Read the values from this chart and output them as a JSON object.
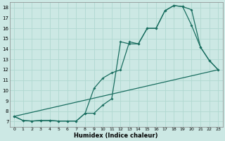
{
  "xlabel": "Humidex (Indice chaleur)",
  "bg_color": "#cce8e4",
  "line_color": "#1a6e60",
  "grid_color": "#b0d8d0",
  "xlim": [
    -0.5,
    23.5
  ],
  "ylim": [
    6.5,
    18.5
  ],
  "xticks": [
    0,
    1,
    2,
    3,
    4,
    5,
    6,
    7,
    8,
    9,
    10,
    11,
    12,
    13,
    14,
    15,
    16,
    17,
    18,
    19,
    20,
    21,
    22,
    23
  ],
  "yticks": [
    7,
    8,
    9,
    10,
    11,
    12,
    13,
    14,
    15,
    16,
    17,
    18
  ],
  "line1_x": [
    0,
    1,
    2,
    3,
    4,
    5,
    6,
    7,
    8,
    9,
    10,
    11,
    12,
    13,
    14,
    15,
    16,
    17,
    18,
    19,
    20,
    21,
    22,
    23
  ],
  "line1_y": [
    7.5,
    7.1,
    7.05,
    7.1,
    7.1,
    7.05,
    7.05,
    7.05,
    7.8,
    7.8,
    8.6,
    9.2,
    14.7,
    14.5,
    14.5,
    16.0,
    16.0,
    17.7,
    18.2,
    18.1,
    17.8,
    14.2,
    12.9,
    12.0
  ],
  "line2_x": [
    0,
    1,
    2,
    3,
    4,
    5,
    6,
    7,
    8,
    9,
    10,
    11,
    12,
    13,
    14,
    15,
    16,
    17,
    18,
    19,
    20,
    21,
    22,
    23
  ],
  "line2_y": [
    7.5,
    7.1,
    7.05,
    7.1,
    7.1,
    7.05,
    7.05,
    7.05,
    7.8,
    10.2,
    11.2,
    11.7,
    12.0,
    14.7,
    14.5,
    16.0,
    16.0,
    17.7,
    18.2,
    18.1,
    16.3,
    14.2,
    12.9,
    12.0
  ],
  "line3_x": [
    0,
    23
  ],
  "line3_y": [
    7.5,
    12.0
  ]
}
